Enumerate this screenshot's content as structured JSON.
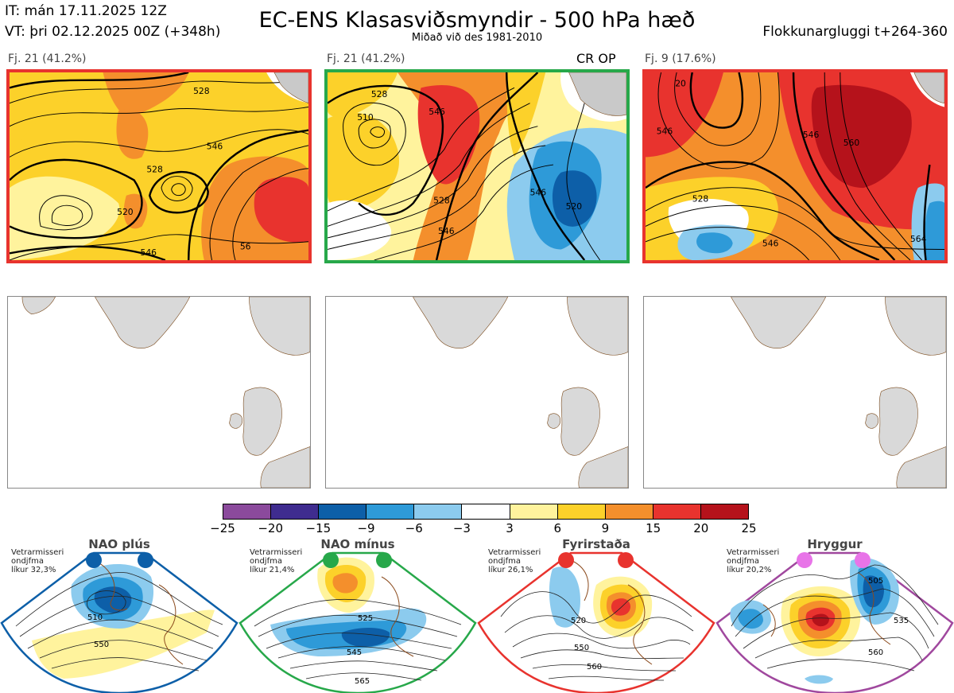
{
  "header": {
    "it_line": "IT: mán 17.11.2025 12Z",
    "vt_line": "VT: þri 02.12.2025 00Z  (+348h)",
    "title": "EC-ENS Klasasviðsmyndir - 500 hPa hæð",
    "subtitle": "Miðað við des 1981-2010",
    "window": "Flokkunargluggi t+264-360"
  },
  "clusters": [
    {
      "label": "Fj. 21 (41.2%)",
      "border_color": "#e8332e",
      "extra": "",
      "contours": [
        "546",
        "528",
        "520",
        "528",
        "546",
        "56"
      ]
    },
    {
      "label": "Fj. 21 (41.2%)",
      "border_color": "#27a84a",
      "extra": "CR OP",
      "contours": [
        "528",
        "510",
        "546",
        "528",
        "546",
        "520",
        "546"
      ]
    },
    {
      "label": "Fj. 9 (17.6%)",
      "border_color": "#e8332e",
      "extra": "",
      "contours": [
        "20",
        "546",
        "546",
        "560",
        "528",
        "546",
        "564"
      ]
    }
  ],
  "colorbar": {
    "colors": [
      "#8b4a9c",
      "#3f2c8f",
      "#0d5fa8",
      "#2e9ad8",
      "#8ccbee",
      "#ffffff",
      "#fff39d",
      "#fcd12a",
      "#f48f2c",
      "#e8332e",
      "#b5121b"
    ],
    "ticks": [
      "−25",
      "−20",
      "−15",
      "−9",
      "−6",
      "−3",
      "3",
      "6",
      "9",
      "15",
      "20",
      "25"
    ]
  },
  "regimes": [
    {
      "name": "NAO plús",
      "color": "#0d5fa8",
      "note": [
        "Vetrarmisseri",
        "ondjfma",
        "líkur 32,3%"
      ],
      "labels": [
        "510",
        "550"
      ]
    },
    {
      "name": "NAO mínus",
      "color": "#27a84a",
      "note": [
        "Vetrarmisseri",
        "ondjfma",
        "líkur 21,4%"
      ],
      "labels": [
        "525",
        "545",
        "565"
      ]
    },
    {
      "name": "Fyrirstaða",
      "color": "#e8332e",
      "note": [
        "Vetrarmisseri",
        "ondjfma",
        "líkur 26,1%"
      ],
      "labels": [
        "520",
        "550",
        "560"
      ]
    },
    {
      "name": "Hryggur",
      "color": "#a0489e",
      "note": [
        "Vetrarmisseri",
        "ondjfma",
        "líkur 20,2%"
      ],
      "labels": [
        "505",
        "535",
        "560"
      ]
    }
  ]
}
